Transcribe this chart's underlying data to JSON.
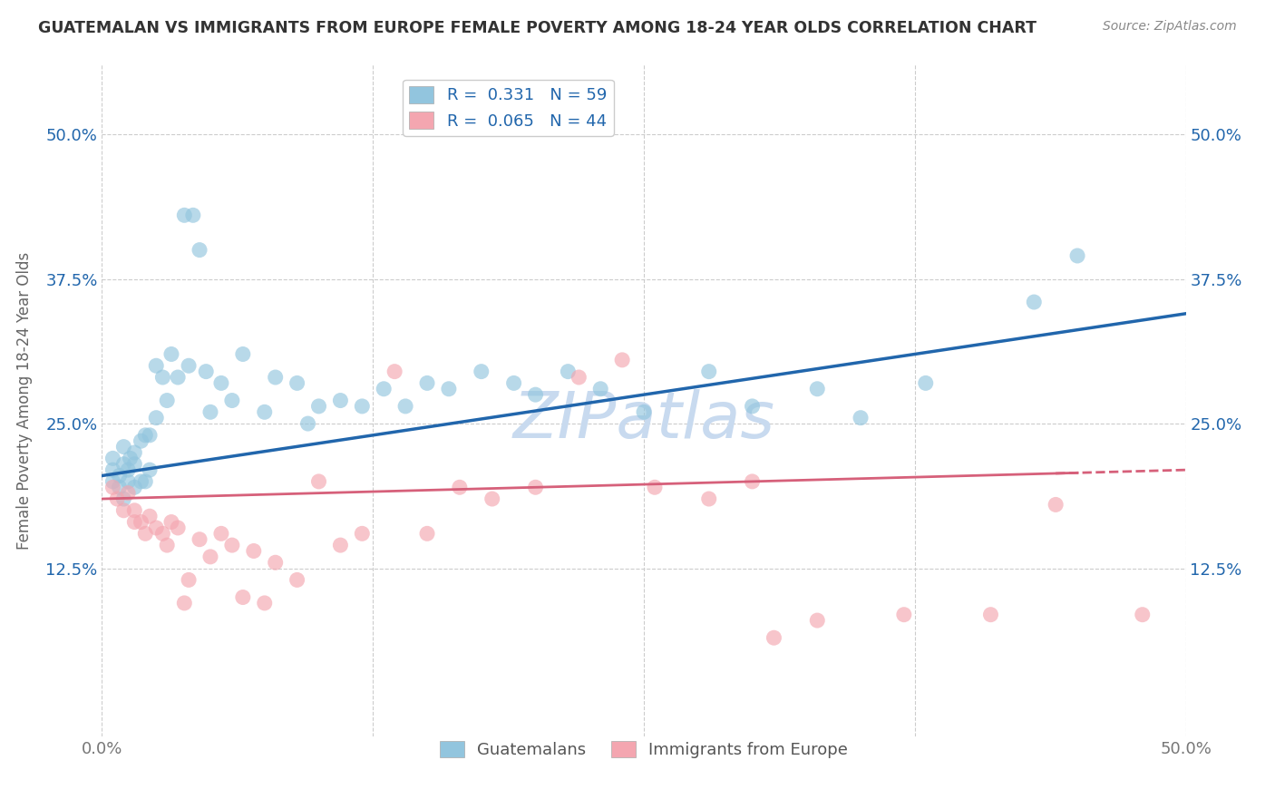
{
  "title": "GUATEMALAN VS IMMIGRANTS FROM EUROPE FEMALE POVERTY AMONG 18-24 YEAR OLDS CORRELATION CHART",
  "source": "Source: ZipAtlas.com",
  "ylabel": "Female Poverty Among 18-24 Year Olds",
  "xlim": [
    0.0,
    0.5
  ],
  "ylim": [
    -0.02,
    0.56
  ],
  "ytick_positions": [
    0.125,
    0.25,
    0.375,
    0.5
  ],
  "ytick_labels": [
    "12.5%",
    "25.0%",
    "37.5%",
    "50.0%"
  ],
  "xtick_positions": [
    0.0,
    0.125,
    0.25,
    0.375,
    0.5
  ],
  "xtick_labels": [
    "0.0%",
    "",
    "",
    "",
    "50.0%"
  ],
  "blue_color": "#92c5de",
  "blue_edge_color": "#92c5de",
  "pink_color": "#f4a6b0",
  "pink_edge_color": "#f4a6b0",
  "blue_line_color": "#2166ac",
  "pink_line_color": "#d6607a",
  "watermark": "ZIPatlas",
  "watermark_color": "#c8daef",
  "legend_R1": "0.331",
  "legend_N1": "59",
  "legend_R2": "0.065",
  "legend_N2": "44",
  "blue_label": "Guatemalans",
  "pink_label": "Immigrants from Europe",
  "blue_scatter_x": [
    0.005,
    0.005,
    0.005,
    0.008,
    0.008,
    0.01,
    0.01,
    0.01,
    0.012,
    0.012,
    0.013,
    0.015,
    0.015,
    0.015,
    0.018,
    0.018,
    0.02,
    0.02,
    0.022,
    0.022,
    0.025,
    0.025,
    0.028,
    0.03,
    0.032,
    0.035,
    0.038,
    0.04,
    0.042,
    0.045,
    0.048,
    0.05,
    0.055,
    0.06,
    0.065,
    0.075,
    0.08,
    0.09,
    0.095,
    0.1,
    0.11,
    0.12,
    0.13,
    0.14,
    0.15,
    0.16,
    0.175,
    0.19,
    0.2,
    0.215,
    0.23,
    0.25,
    0.28,
    0.3,
    0.33,
    0.35,
    0.38,
    0.43,
    0.45
  ],
  "blue_scatter_y": [
    0.2,
    0.21,
    0.22,
    0.195,
    0.205,
    0.185,
    0.215,
    0.23,
    0.2,
    0.21,
    0.22,
    0.195,
    0.215,
    0.225,
    0.2,
    0.235,
    0.2,
    0.24,
    0.21,
    0.24,
    0.255,
    0.3,
    0.29,
    0.27,
    0.31,
    0.29,
    0.43,
    0.3,
    0.43,
    0.4,
    0.295,
    0.26,
    0.285,
    0.27,
    0.31,
    0.26,
    0.29,
    0.285,
    0.25,
    0.265,
    0.27,
    0.265,
    0.28,
    0.265,
    0.285,
    0.28,
    0.295,
    0.285,
    0.275,
    0.295,
    0.28,
    0.26,
    0.295,
    0.265,
    0.28,
    0.255,
    0.285,
    0.355,
    0.395
  ],
  "pink_scatter_x": [
    0.005,
    0.007,
    0.01,
    0.012,
    0.015,
    0.015,
    0.018,
    0.02,
    0.022,
    0.025,
    0.028,
    0.03,
    0.032,
    0.035,
    0.038,
    0.04,
    0.045,
    0.05,
    0.055,
    0.06,
    0.065,
    0.07,
    0.075,
    0.08,
    0.09,
    0.1,
    0.11,
    0.12,
    0.135,
    0.15,
    0.165,
    0.18,
    0.2,
    0.22,
    0.24,
    0.255,
    0.28,
    0.3,
    0.31,
    0.33,
    0.37,
    0.41,
    0.44,
    0.48
  ],
  "pink_scatter_y": [
    0.195,
    0.185,
    0.175,
    0.19,
    0.165,
    0.175,
    0.165,
    0.155,
    0.17,
    0.16,
    0.155,
    0.145,
    0.165,
    0.16,
    0.095,
    0.115,
    0.15,
    0.135,
    0.155,
    0.145,
    0.1,
    0.14,
    0.095,
    0.13,
    0.115,
    0.2,
    0.145,
    0.155,
    0.295,
    0.155,
    0.195,
    0.185,
    0.195,
    0.29,
    0.305,
    0.195,
    0.185,
    0.2,
    0.065,
    0.08,
    0.085,
    0.085,
    0.18,
    0.085
  ],
  "blue_line_x0": 0.0,
  "blue_line_y0": 0.205,
  "blue_line_x1": 0.5,
  "blue_line_y1": 0.345,
  "pink_line_x0": 0.0,
  "pink_line_y0": 0.185,
  "pink_line_x1": 0.5,
  "pink_line_y1": 0.21
}
